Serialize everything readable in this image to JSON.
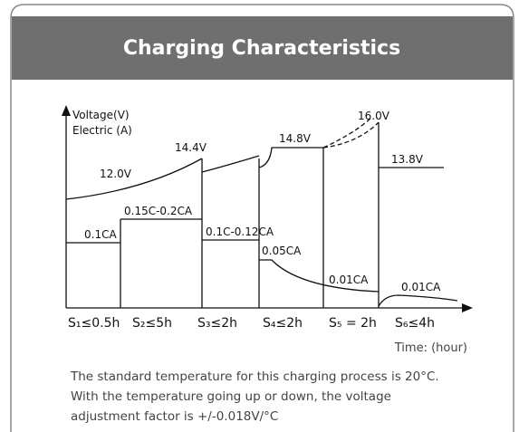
{
  "header": {
    "title": "Charging Characteristics"
  },
  "diagram": {
    "y_labels": [
      "Voltage(V)",
      "Electric (A)"
    ],
    "voltage_labels": [
      "12.0V",
      "14.4V",
      "14.8V",
      "16.0V",
      "13.8V"
    ],
    "current_labels": [
      "0.1CA",
      "0.15C-0.2CA",
      "0.1C-0.12CA",
      "0.05CA",
      "0.01CA",
      "0.01CA"
    ],
    "stages": [
      "S₁≤0.5h",
      "S₂≤5h",
      "S₃≤2h",
      "S₄≤2h",
      "S₅ = 2h",
      "S₆≤4h"
    ],
    "x_label": "Time: (hour)"
  },
  "footer": {
    "lines": [
      "The standard temperature for this charging process is 20°C.",
      "With the temperature going up or down, the voltage",
      "adjustment factor is +/-0.018V/°C"
    ]
  }
}
